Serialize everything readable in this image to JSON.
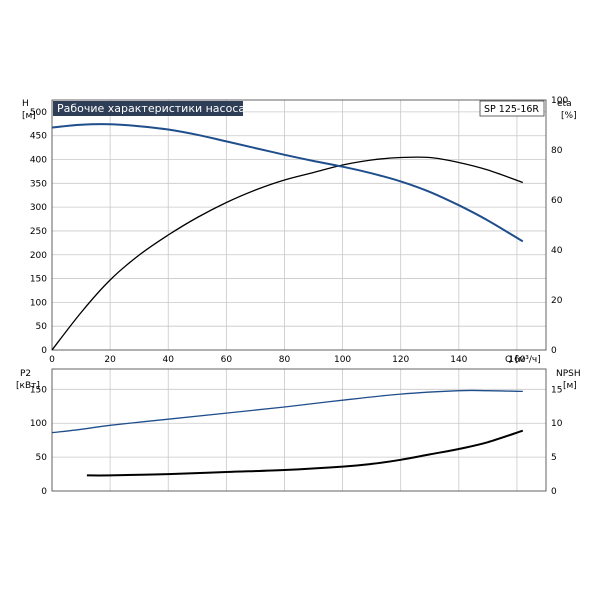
{
  "title": "Рабочие характеристики насоса",
  "model": "SP 125-16R",
  "colors": {
    "head": "#1f4e8c",
    "power": "#1f4e8c",
    "eta": "#000000",
    "npsh": "#000000",
    "title_bg": "#2e3e56"
  },
  "chart_data": [
    {
      "type": "line",
      "name": "upper",
      "xlabel": "Q [м³/ч]",
      "xlim": [
        0,
        170
      ],
      "x_ticks": [
        "0",
        "20",
        "40",
        "60",
        "80",
        "100",
        "120",
        "140",
        "160"
      ],
      "ylabel_left": [
        "H",
        "[м]"
      ],
      "ylim_left": [
        0,
        525
      ],
      "y_ticks_left": [
        "0",
        "50",
        "100",
        "150",
        "200",
        "250",
        "300",
        "350",
        "400",
        "450",
        "500"
      ],
      "ylabel_right": [
        "eta",
        "[%]"
      ],
      "ylim_right": [
        0,
        100
      ],
      "y_ticks_right": [
        "0",
        "20",
        "40",
        "60",
        "80",
        "100"
      ],
      "grid": true,
      "series": [
        {
          "axis": "left",
          "x": [
            0,
            10,
            20,
            30,
            40,
            50,
            60,
            70,
            80,
            90,
            100,
            110,
            120,
            130,
            140,
            150,
            162
          ],
          "y": [
            467,
            473,
            474,
            470,
            463,
            452,
            438,
            424,
            410,
            397,
            385,
            371,
            354,
            332,
            304,
            272,
            228
          ]
        },
        {
          "axis": "right",
          "x": [
            0,
            10,
            20,
            30,
            40,
            50,
            60,
            70,
            80,
            90,
            100,
            110,
            120,
            130,
            140,
            150,
            162
          ],
          "y": [
            0,
            15,
            28,
            38,
            46,
            53,
            59,
            64,
            68,
            71,
            74,
            76,
            77,
            77,
            75,
            72,
            67
          ]
        }
      ]
    },
    {
      "type": "line",
      "name": "lower",
      "xlim": [
        0,
        170
      ],
      "ylabel_left": [
        "P2",
        "[кВт]"
      ],
      "ylim_left": [
        0,
        180
      ],
      "y_ticks_left": [
        "0",
        "50",
        "100",
        "150"
      ],
      "ylabel_right": [
        "NPSH",
        "[м]"
      ],
      "ylim_right": [
        0,
        18
      ],
      "y_ticks_right": [
        "0",
        "5",
        "10",
        "15"
      ],
      "grid": true,
      "series": [
        {
          "axis": "left",
          "x": [
            0,
            10,
            20,
            40,
            60,
            80,
            100,
            120,
            140,
            150,
            162
          ],
          "y": [
            86,
            91,
            97,
            106,
            115,
            124,
            134,
            143,
            148,
            148,
            147
          ]
        },
        {
          "axis": "right",
          "x": [
            12,
            20,
            40,
            60,
            80,
            100,
            110,
            120,
            130,
            140,
            150,
            162
          ],
          "y": [
            2.3,
            2.3,
            2.5,
            2.8,
            3.1,
            3.6,
            4.0,
            4.6,
            5.4,
            6.2,
            7.2,
            8.9
          ]
        }
      ]
    }
  ]
}
